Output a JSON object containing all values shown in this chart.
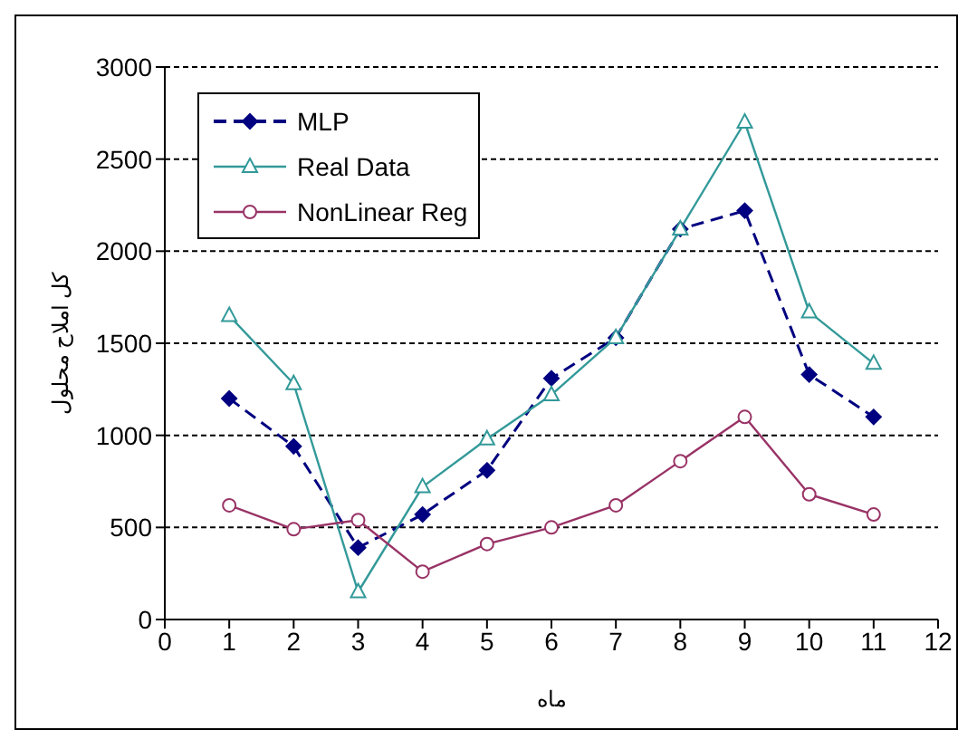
{
  "chart_data": {
    "type": "line",
    "xlabel": "ماه",
    "ylabel": "کل املاح محلول",
    "x": [
      1,
      2,
      3,
      4,
      5,
      6,
      7,
      8,
      9,
      10,
      11
    ],
    "series": [
      {
        "name": "MLP",
        "color": "#000080",
        "marker": "diamond",
        "line_style": "dashed",
        "values": [
          1200,
          940,
          390,
          570,
          810,
          1310,
          1530,
          2120,
          2220,
          1330,
          1100
        ]
      },
      {
        "name": "Real Data",
        "color": "#339999",
        "marker": "triangle",
        "line_style": "solid",
        "values": [
          1650,
          1280,
          150,
          720,
          980,
          1220,
          1530,
          2120,
          2700,
          1670,
          1390
        ]
      },
      {
        "name": "NonLinear Reg",
        "color": "#993366",
        "marker": "circle",
        "line_style": "solid",
        "values": [
          620,
          490,
          540,
          260,
          410,
          500,
          620,
          860,
          1100,
          680,
          570
        ]
      }
    ],
    "xlim": [
      0,
      12
    ],
    "xticks": [
      0,
      1,
      2,
      3,
      4,
      5,
      6,
      7,
      8,
      9,
      10,
      11,
      12
    ],
    "ylim": [
      0,
      3000
    ],
    "yticks": [
      0,
      500,
      1000,
      1500,
      2000,
      2500,
      3000
    ],
    "grid": "y",
    "legend": "top left"
  }
}
